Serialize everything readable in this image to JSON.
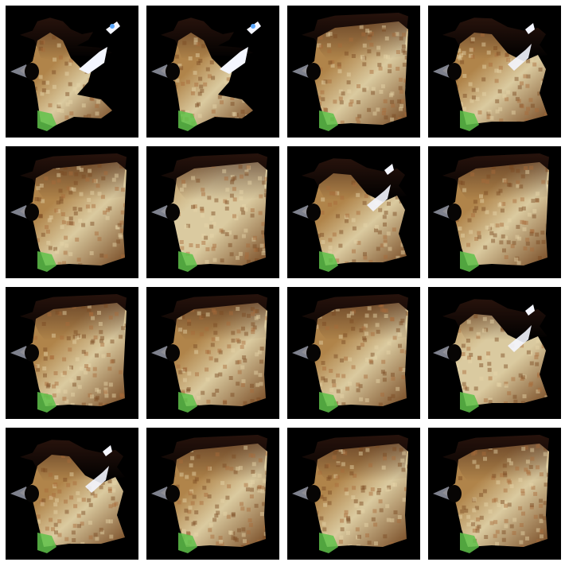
{
  "colors": {
    "page_background": "#ffffff",
    "tile_background": "#000000",
    "body_light": "#e6d5a8",
    "body_mid": "#b98b4e",
    "body_dark": "#7a4a22",
    "top_dark": "#3b1c12",
    "left_tip": "#8c8f9c",
    "hole": "#070504",
    "green": "#5fc24a",
    "glow_white": "#f4f6ff",
    "glow_blue": "#5aa8ff"
  },
  "tiles": [
    {
      "variant": "streak",
      "tone": 0
    },
    {
      "variant": "streak",
      "tone": 1
    },
    {
      "variant": "blob",
      "tone": 0
    },
    {
      "variant": "partial",
      "tone": 0
    },
    {
      "variant": "blob",
      "tone": 1
    },
    {
      "variant": "blob",
      "tone": 2
    },
    {
      "variant": "partial",
      "tone": 1
    },
    {
      "variant": "blob",
      "tone": 1
    },
    {
      "variant": "blob",
      "tone": 1
    },
    {
      "variant": "blob",
      "tone": 1
    },
    {
      "variant": "blob",
      "tone": 1
    },
    {
      "variant": "partial",
      "tone": 2
    },
    {
      "variant": "partial",
      "tone": 0
    },
    {
      "variant": "blob",
      "tone": 1
    },
    {
      "variant": "blob",
      "tone": 1
    },
    {
      "variant": "blob",
      "tone": 1
    }
  ]
}
